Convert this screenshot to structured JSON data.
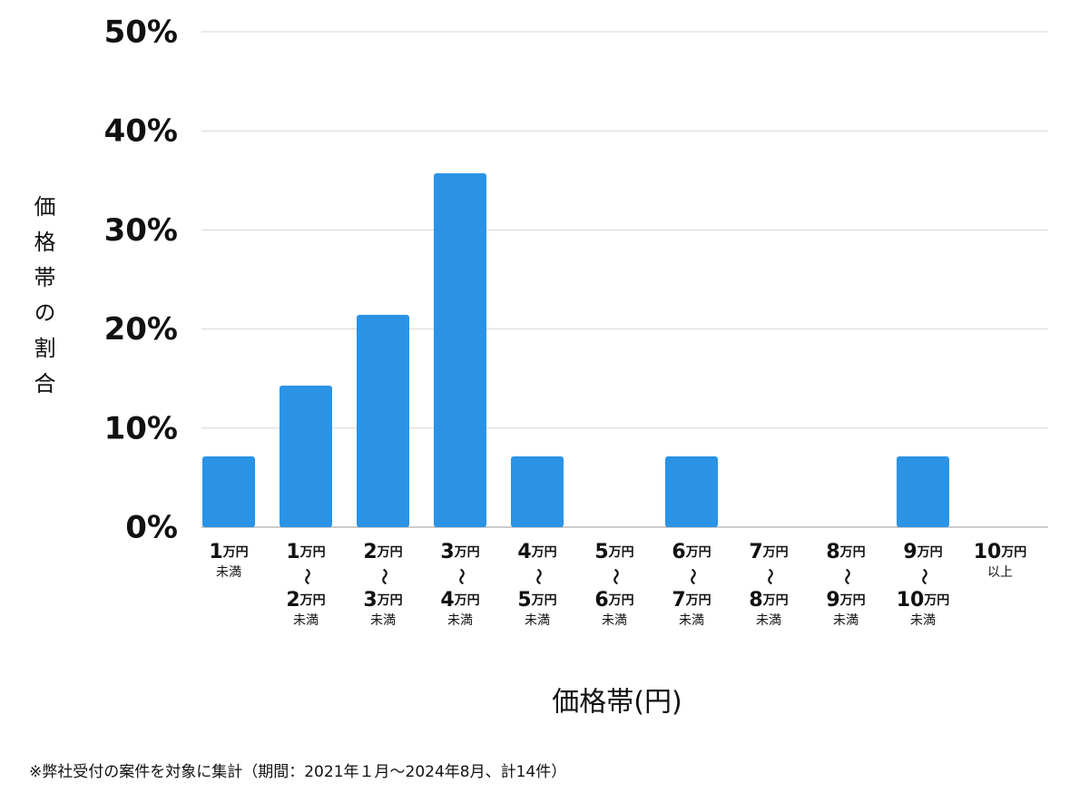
{
  "chart_data": {
    "type": "bar",
    "y_label": "価格帯の割合",
    "x_label": "価格帯(円)",
    "footnote": "※弊社受付の案件を対象に集計（期間：2021年１月〜2024年8月、計14件）",
    "categories": [
      [
        "1万円",
        "未満"
      ],
      [
        "1万円",
        "〜",
        "2万円",
        "未満"
      ],
      [
        "2万円",
        "〜",
        "3万円",
        "未満"
      ],
      [
        "3万円",
        "〜",
        "4万円",
        "未満"
      ],
      [
        "4万円",
        "〜",
        "5万円",
        "未満"
      ],
      [
        "5万円",
        "〜",
        "6万円",
        "未満"
      ],
      [
        "6万円",
        "〜",
        "7万円",
        "未満"
      ],
      [
        "7万円",
        "〜",
        "8万円",
        "未満"
      ],
      [
        "8万円",
        "〜",
        "9万円",
        "未満"
      ],
      [
        "9万円",
        "〜",
        "10万円",
        "未満"
      ],
      [
        "10万円",
        "以上"
      ]
    ],
    "values": [
      7.14,
      14.29,
      21.43,
      35.71,
      7.14,
      0,
      7.14,
      0,
      0,
      7.14,
      0
    ],
    "color": "#2a93e6",
    "ylim": [
      0,
      50
    ],
    "yticks": [
      {
        "value": 0,
        "label": "0%"
      },
      {
        "value": 10,
        "label": "10%"
      },
      {
        "value": 20,
        "label": "20%"
      },
      {
        "value": 30,
        "label": "30%"
      },
      {
        "value": 40,
        "label": "40%"
      },
      {
        "value": 50,
        "label": "50%"
      }
    ],
    "grid": true
  }
}
